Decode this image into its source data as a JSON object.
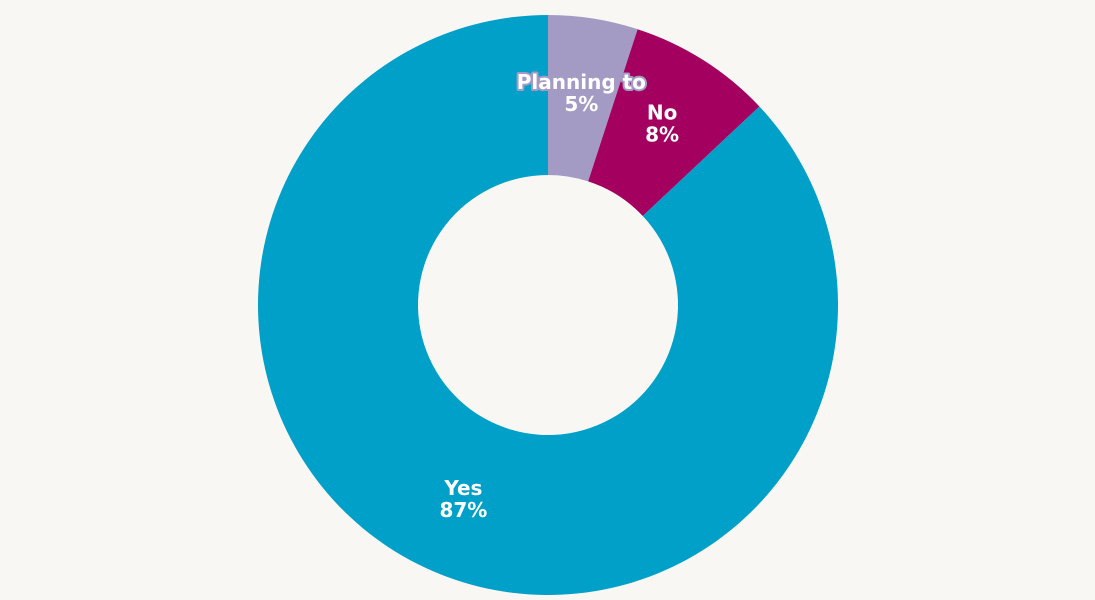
{
  "chart_data": {
    "type": "donut",
    "categories": [
      "Planning to",
      "No",
      "Yes"
    ],
    "values": [
      5,
      8,
      87
    ],
    "value_labels": [
      "5%",
      "8%",
      "87%"
    ],
    "colors": [
      "#a39bc4",
      "#a3005f",
      "#00a0c8"
    ]
  }
}
